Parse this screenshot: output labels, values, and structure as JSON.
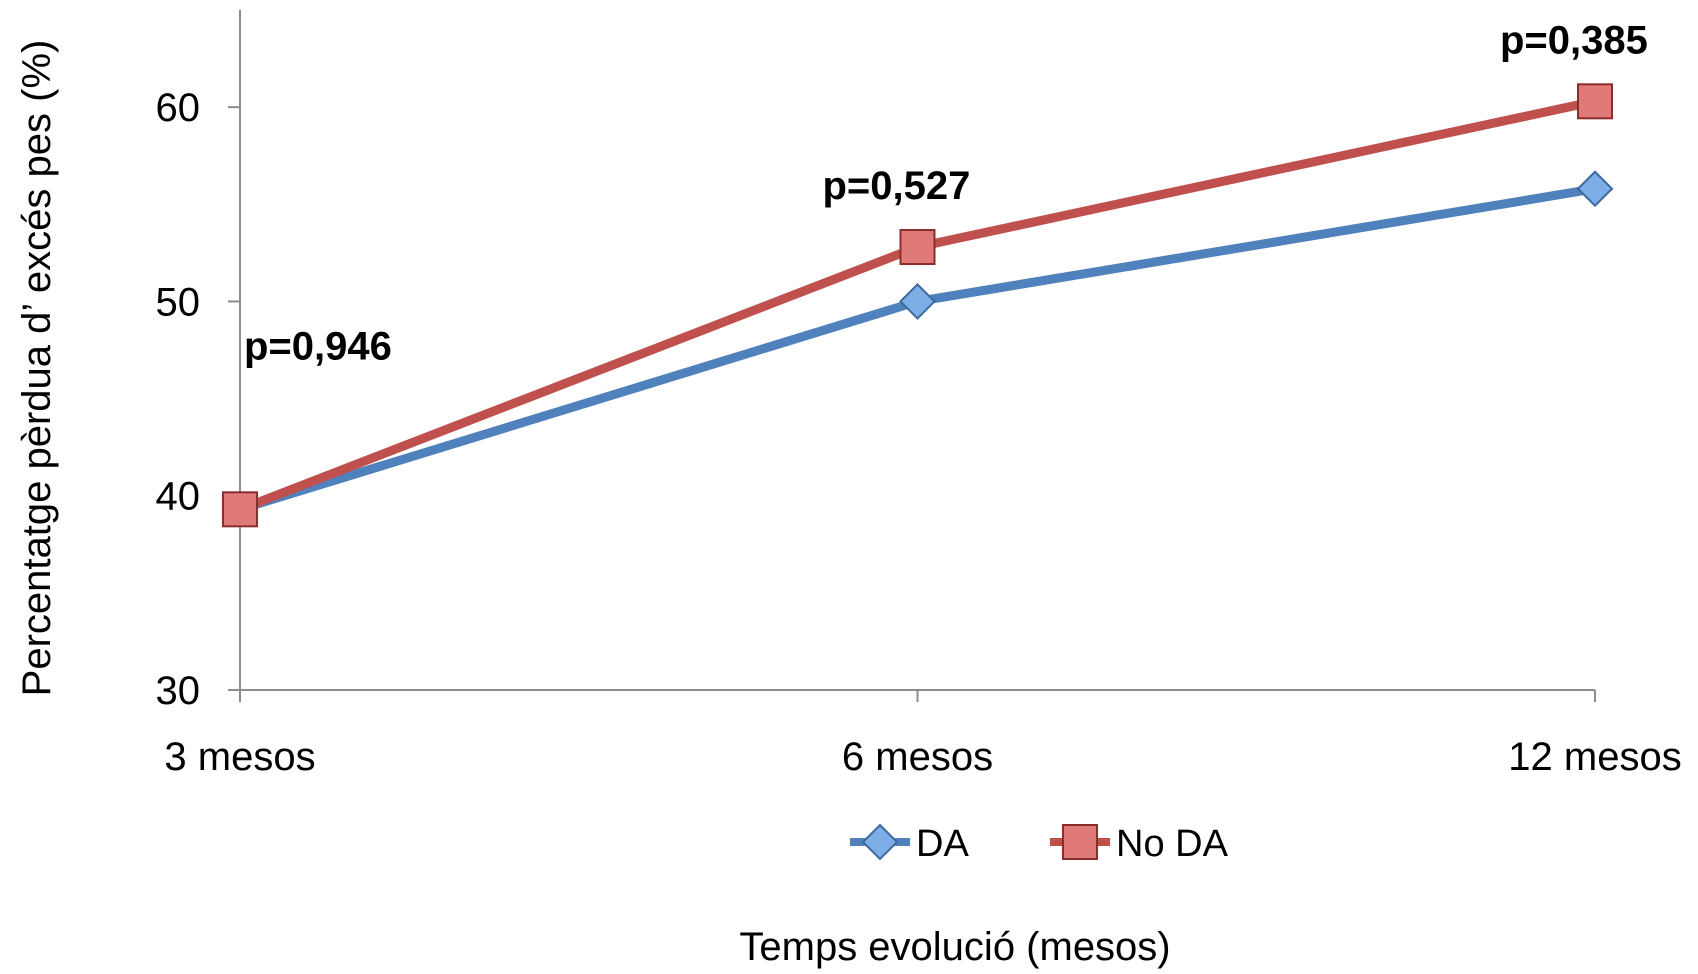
{
  "chart_data": {
    "type": "line",
    "categories": [
      "3 mesos",
      "6 mesos",
      "12 mesos"
    ],
    "series": [
      {
        "name": "DA",
        "values": [
          39.3,
          50.0,
          55.8
        ],
        "color": "#4F81BD",
        "marker": "diamond"
      },
      {
        "name": "No DA",
        "values": [
          39.3,
          52.8,
          60.3
        ],
        "color": "#C0504D",
        "marker": "square"
      }
    ],
    "title": "",
    "xlabel": "Temps evolució (mesos)",
    "ylabel": "Percentatge pèrdua d’ excés pes (%)",
    "ylim": [
      30,
      65
    ],
    "yticks": [
      30,
      40,
      50,
      60
    ],
    "grid": false,
    "legend_position": "bottom",
    "annotations": [
      {
        "text": "p=0,946",
        "category": "3 mesos"
      },
      {
        "text": "p=0,527",
        "category": "6 mesos"
      },
      {
        "text": "p=0,385",
        "category": "12 mesos"
      }
    ]
  }
}
